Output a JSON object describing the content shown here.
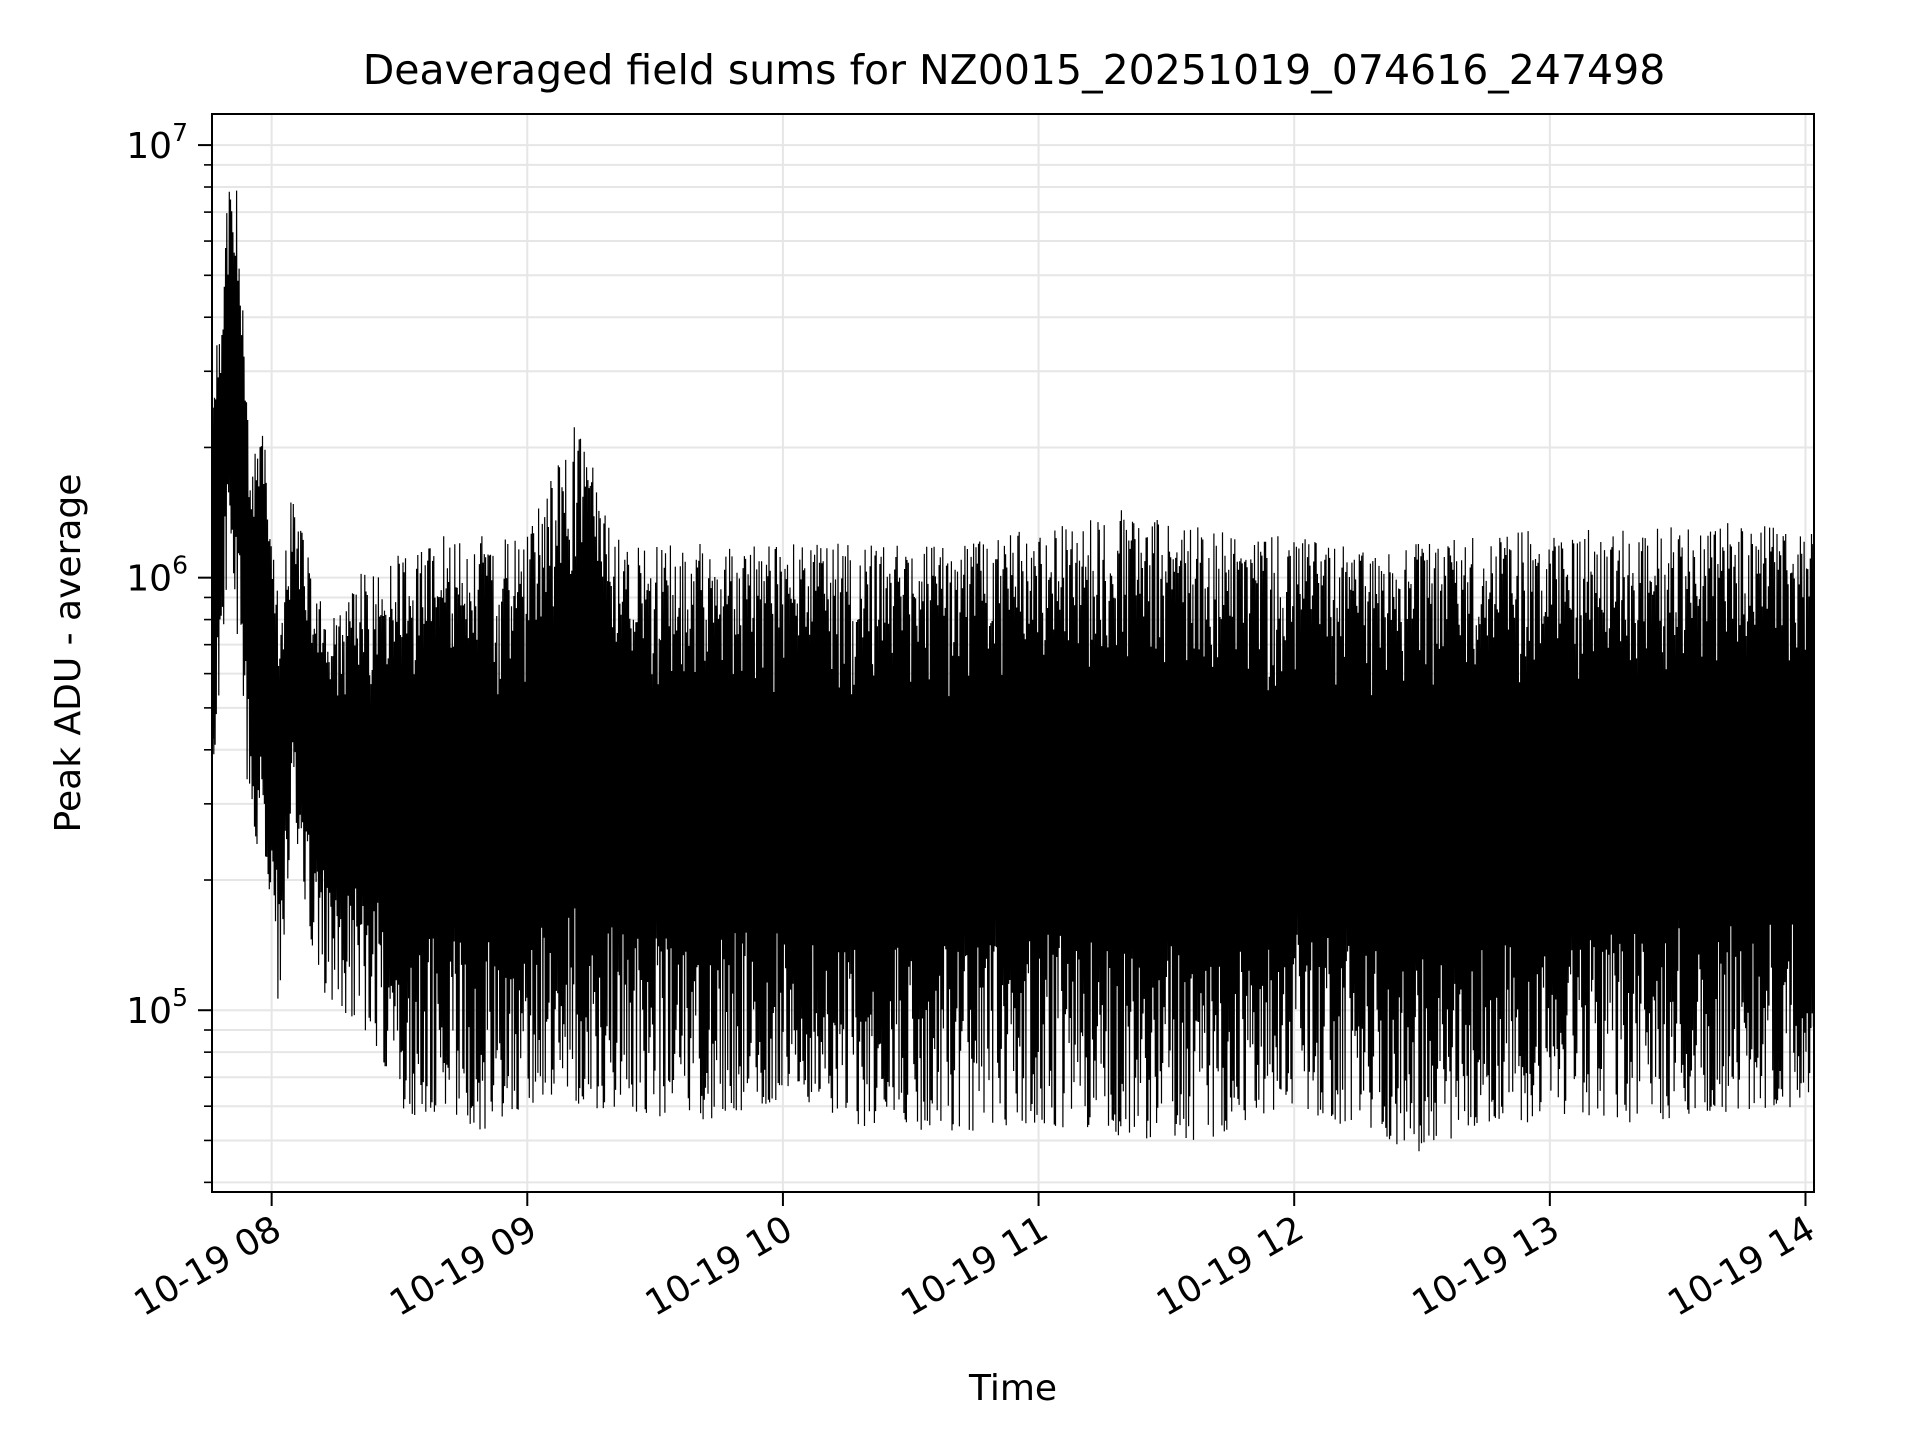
{
  "chart_data": {
    "type": "line",
    "title": "Deaveraged field sums for NZ0015_20251019_074616_247498",
    "xlabel": "Time",
    "ylabel": "Peak ADU - average",
    "y_scale": "log",
    "grid": true,
    "line_color": "#000000",
    "grid_color": "#e6e6e6",
    "xlim": [
      "2025-10-19 07:46",
      "2025-10-19 14:02"
    ],
    "ylim": [
      38000,
      11800000
    ],
    "x_ticks": [
      {
        "value": "2025-10-19 08:00",
        "label": "10-19 08"
      },
      {
        "value": "2025-10-19 09:00",
        "label": "10-19 09"
      },
      {
        "value": "2025-10-19 10:00",
        "label": "10-19 10"
      },
      {
        "value": "2025-10-19 11:00",
        "label": "10-19 11"
      },
      {
        "value": "2025-10-19 12:00",
        "label": "10-19 12"
      },
      {
        "value": "2025-10-19 13:00",
        "label": "10-19 13"
      },
      {
        "value": "2025-10-19 14:00",
        "label": "10-19 14"
      }
    ],
    "y_ticks": [
      {
        "value": 100000,
        "base": "10",
        "exp": "5"
      },
      {
        "value": 1000000,
        "base": "10",
        "exp": "6"
      },
      {
        "value": 10000000,
        "base": "10",
        "exp": "7"
      }
    ],
    "series": [
      {
        "envelope": [
          {
            "t": "2025-10-19 07:46",
            "low": 330000,
            "high": 2800000
          },
          {
            "t": "2025-10-19 07:48",
            "low": 600000,
            "high": 4200000
          },
          {
            "t": "2025-10-19 07:50",
            "low": 900000,
            "high": 9200000
          },
          {
            "t": "2025-10-19 07:52",
            "low": 700000,
            "high": 7800000
          },
          {
            "t": "2025-10-19 07:55",
            "low": 260000,
            "high": 1700000
          },
          {
            "t": "2025-10-19 07:58",
            "low": 220000,
            "high": 2400000
          },
          {
            "t": "2025-10-19 08:00",
            "low": 180000,
            "high": 1300000
          },
          {
            "t": "2025-10-19 08:02",
            "low": 87000,
            "high": 900000
          },
          {
            "t": "2025-10-19 08:05",
            "low": 280000,
            "high": 1650000
          },
          {
            "t": "2025-10-19 08:10",
            "low": 120000,
            "high": 950000
          },
          {
            "t": "2025-10-19 08:15",
            "low": 100000,
            "high": 800000
          },
          {
            "t": "2025-10-19 08:20",
            "low": 95000,
            "high": 1050000
          },
          {
            "t": "2025-10-19 08:25",
            "low": 80000,
            "high": 1000000
          },
          {
            "t": "2025-10-19 08:30",
            "low": 60000,
            "high": 1150000
          },
          {
            "t": "2025-10-19 08:35",
            "low": 55000,
            "high": 1150000
          },
          {
            "t": "2025-10-19 08:40",
            "low": 60000,
            "high": 1250000
          },
          {
            "t": "2025-10-19 08:50",
            "low": 52000,
            "high": 1250000
          },
          {
            "t": "2025-10-19 09:00",
            "low": 60000,
            "high": 1250000
          },
          {
            "t": "2025-10-19 09:12",
            "low": 60000,
            "high": 2450000
          },
          {
            "t": "2025-10-19 09:20",
            "low": 58000,
            "high": 1250000
          },
          {
            "t": "2025-10-19 09:40",
            "low": 55000,
            "high": 1200000
          },
          {
            "t": "2025-10-19 10:00",
            "low": 62000,
            "high": 1200000
          },
          {
            "t": "2025-10-19 10:20",
            "low": 52000,
            "high": 1200000
          },
          {
            "t": "2025-10-19 10:40",
            "low": 52000,
            "high": 1200000
          },
          {
            "t": "2025-10-19 11:00",
            "low": 55000,
            "high": 1300000
          },
          {
            "t": "2025-10-19 11:20",
            "low": 50000,
            "high": 1450000
          },
          {
            "t": "2025-10-19 11:40",
            "low": 50000,
            "high": 1300000
          },
          {
            "t": "2025-10-19 12:00",
            "low": 60000,
            "high": 1250000
          },
          {
            "t": "2025-10-19 12:20",
            "low": 50000,
            "high": 1150000
          },
          {
            "t": "2025-10-19 12:30",
            "low": 47000,
            "high": 1250000
          },
          {
            "t": "2025-10-19 12:45",
            "low": 55000,
            "high": 1250000
          },
          {
            "t": "2025-10-19 13:00",
            "low": 55000,
            "high": 1300000
          },
          {
            "t": "2025-10-19 13:20",
            "low": 55000,
            "high": 1300000
          },
          {
            "t": "2025-10-19 13:40",
            "low": 58000,
            "high": 1350000
          },
          {
            "t": "2025-10-19 14:00",
            "low": 60000,
            "high": 1300000
          },
          {
            "t": "2025-10-19 14:02",
            "low": 70000,
            "high": 1300000
          }
        ]
      }
    ]
  }
}
